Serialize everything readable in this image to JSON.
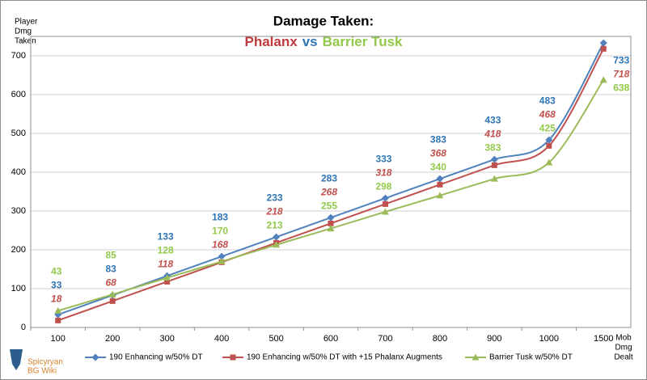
{
  "chart_data": {
    "type": "line",
    "title": "Damage Taken:",
    "subtitle": [
      {
        "text": "Phalanx",
        "color": "#c0393b"
      },
      {
        "text": "vs",
        "color": "#2e75b6"
      },
      {
        "text": "Barrier Tusk",
        "color": "#92c94a"
      }
    ],
    "y_label": [
      "Player",
      "Dmg",
      "Taken"
    ],
    "x_label": [
      "Mob",
      "Dmg",
      "Dealt"
    ],
    "watermark": [
      "Spicyryan",
      "BG Wiki"
    ],
    "categories": [
      "100",
      "200",
      "300",
      "400",
      "500",
      "600",
      "700",
      "800",
      "900",
      "1000",
      "1500"
    ],
    "series": [
      {
        "name": "190 Enhancing w/50% DT",
        "color": "#4f81bd",
        "label_color": "#2e75b6",
        "marker": "diamond",
        "italic": false,
        "values": [
          33,
          83,
          133,
          183,
          233,
          283,
          333,
          383,
          433,
          483,
          733
        ]
      },
      {
        "name": "190 Enhancing w/50% DT with +15 Phalanx Augments",
        "color": "#c0504d",
        "label_color": "#c0504d",
        "marker": "square",
        "italic": true,
        "values": [
          18,
          68,
          118,
          168,
          218,
          268,
          318,
          368,
          418,
          468,
          718
        ]
      },
      {
        "name": "Barrier Tusk w/50% DT",
        "color": "#9bbb59",
        "label_color": "#92c94a",
        "marker": "triangle",
        "italic": false,
        "values": [
          43,
          85,
          128,
          170,
          213,
          255,
          298,
          340,
          383,
          425,
          638
        ]
      }
    ],
    "ylim": [
      0,
      750
    ],
    "yticks": [
      0,
      100,
      200,
      300,
      400,
      500,
      600,
      700
    ],
    "grid": true,
    "smooth": true
  }
}
